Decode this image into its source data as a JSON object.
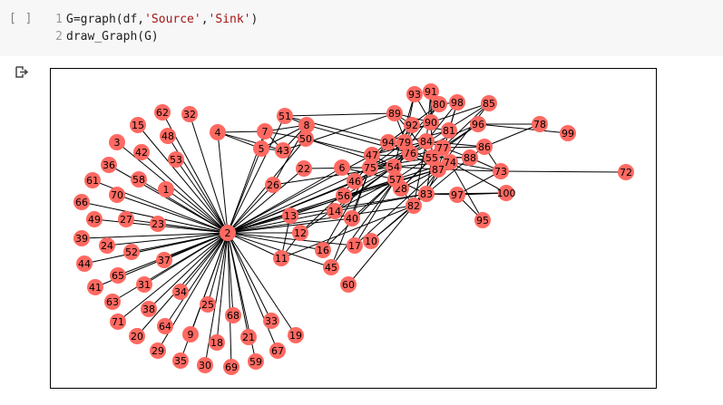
{
  "cell": {
    "prompt": "[ ]",
    "lines": [
      {
        "num": "1",
        "pre": "G=graph(df,",
        "s1": "'Source'",
        "mid": ",",
        "s2": "'Sink'",
        "post": ")"
      },
      {
        "num": "2",
        "text": "draw_Graph(G)"
      }
    ]
  },
  "output": {
    "icon": "output-redirect-icon",
    "graph": {
      "node_color": "#ff6961",
      "edge_color": "#000000",
      "nodes": [
        "1",
        "2",
        "3",
        "4",
        "5",
        "6",
        "7",
        "8",
        "9",
        "10",
        "11",
        "12",
        "13",
        "14",
        "15",
        "16",
        "17",
        "18",
        "19",
        "20",
        "21",
        "22",
        "23",
        "24",
        "25",
        "26",
        "27",
        "28",
        "29",
        "30",
        "31",
        "32",
        "33",
        "34",
        "35",
        "36",
        "37",
        "38",
        "39",
        "40",
        "41",
        "42",
        "43",
        "44",
        "45",
        "46",
        "47",
        "48",
        "49",
        "50",
        "51",
        "52",
        "53",
        "54",
        "55",
        "56",
        "57",
        "58",
        "59",
        "60",
        "61",
        "62",
        "63",
        "64",
        "65",
        "66",
        "67",
        "68",
        "69",
        "70",
        "71",
        "72",
        "73",
        "74",
        "75",
        "76",
        "77",
        "78",
        "79",
        "80",
        "81",
        "82",
        "83",
        "84",
        "85",
        "86",
        "87",
        "88",
        "89",
        "90",
        "91",
        "92",
        "93",
        "94",
        "95",
        "96",
        "97",
        "98",
        "99",
        "100"
      ]
    }
  }
}
